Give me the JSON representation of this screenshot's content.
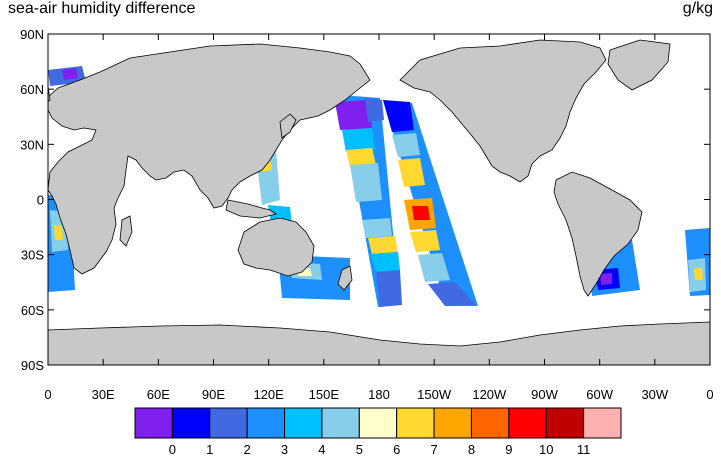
{
  "header": {
    "title": "sea-air humidity difference",
    "units": "g/kg"
  },
  "axes": {
    "y_ticks": [
      {
        "lat": 90,
        "label": "90N"
      },
      {
        "lat": 60,
        "label": "60N"
      },
      {
        "lat": 30,
        "label": "30N"
      },
      {
        "lat": 0,
        "label": "0"
      },
      {
        "lat": -30,
        "label": "30S"
      },
      {
        "lat": -60,
        "label": "60S"
      },
      {
        "lat": -90,
        "label": "90S"
      }
    ],
    "x_ticks": [
      {
        "lon": 0,
        "label": "0"
      },
      {
        "lon": 30,
        "label": "30E"
      },
      {
        "lon": 60,
        "label": "60E"
      },
      {
        "lon": 90,
        "label": "90E"
      },
      {
        "lon": 120,
        "label": "120E"
      },
      {
        "lon": 150,
        "label": "150E"
      },
      {
        "lon": 180,
        "label": "180"
      },
      {
        "lon": 210,
        "label": "150W"
      },
      {
        "lon": 240,
        "label": "120W"
      },
      {
        "lon": 270,
        "label": "90W"
      },
      {
        "lon": 300,
        "label": "60W"
      },
      {
        "lon": 330,
        "label": "30W"
      },
      {
        "lon": 360,
        "label": "0"
      }
    ]
  },
  "colorbar": {
    "colors": [
      "#7f1ff0",
      "#0000ff",
      "#4169e1",
      "#1e8fff",
      "#00bfff",
      "#87ceeb",
      "#ffffcc",
      "#ffd92f",
      "#ffa500",
      "#ff6600",
      "#ff0000",
      "#c00000",
      "#ffb0b0"
    ],
    "labels": [
      "0",
      "1",
      "2",
      "3",
      "4",
      "5",
      "6",
      "7",
      "8",
      "9",
      "10",
      "11"
    ]
  },
  "map": {
    "land_color": "#c8c8c8",
    "coast_color": "#000000",
    "ocean_color": "#ffffff"
  }
}
